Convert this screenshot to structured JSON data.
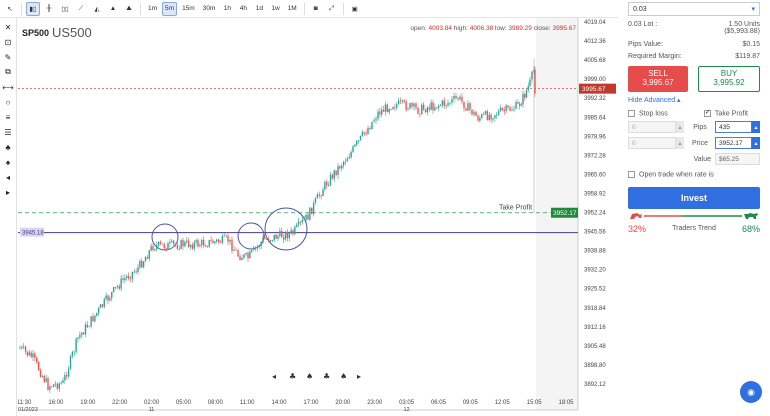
{
  "toolbar": {
    "intervals": [
      "1m",
      "5m",
      "15m",
      "30m",
      "1h",
      "4h",
      "1d",
      "1w",
      "1M"
    ],
    "active_interval": "5m"
  },
  "symbol": {
    "code": "SP500",
    "name": "US500"
  },
  "ohlc": {
    "open_label": "open:",
    "open": "4003.84",
    "high_label": "high:",
    "high": "4006.38",
    "low_label": "low:",
    "low": "3989.29",
    "close_label": "close:",
    "close": "3995.67"
  },
  "axis": {
    "prices": [
      "4019.04",
      "4012.36",
      "4005.68",
      "3999.00",
      "3992.32",
      "3985.64",
      "3978.96",
      "3972.28",
      "3965.60",
      "3958.92",
      "3952.24",
      "3945.56",
      "3938.88",
      "3932.20",
      "3925.52",
      "3918.84",
      "3912.16",
      "3905.48",
      "3898.80",
      "3892.12"
    ],
    "times": [
      "11:30",
      "16:00",
      "19:00",
      "22:00",
      "02:00",
      "05:00",
      "08:00",
      "11:00",
      "14:00",
      "17:00",
      "20:00",
      "23:00",
      "03:05",
      "06:05",
      "09:05",
      "12:05",
      "15:05",
      "18:05"
    ],
    "time_subs": {
      "0": "10/01/2023",
      "4": "11",
      "12": "12"
    },
    "current_price": "3995.67",
    "tp_price": "3952.17",
    "line_price": "3945.18"
  },
  "annotations": {
    "take_profit": "Take Profit"
  },
  "panel": {
    "quantity": "0.03",
    "lot_label": "0.03 Lot :",
    "units": "1.50 Units",
    "units_value": "($5,993.88)",
    "pips_value_label": "Pips Value:",
    "pips_value": "$0.15",
    "margin_label": "Required Margin:",
    "margin": "$119.87",
    "sell_label": "SELL",
    "sell_price": "3,995.67",
    "buy_label": "BUY",
    "buy_price": "3,995.92",
    "hide_advanced": "Hide Advanced",
    "stop_loss": "Stop loss",
    "take_profit": "Take Profit",
    "sl_pips": "0",
    "sl_price": "0",
    "pips_label": "Pips",
    "price_label": "Price",
    "value_label": "Value",
    "tp_pips": "435",
    "tp_price": "3952.17",
    "tp_value": "$65.25",
    "open_when_rate": "Open trade when rate is",
    "invest": "Invest",
    "bear_pct": "32%",
    "traders_trend": "Traders Trend",
    "bull_pct": "68%"
  },
  "colors": {
    "sell": "#e74c4c",
    "buy": "#1f8a4c",
    "accent": "#2f6fe0",
    "candle_up": "#26a69a",
    "candle_down": "#ef5350"
  }
}
